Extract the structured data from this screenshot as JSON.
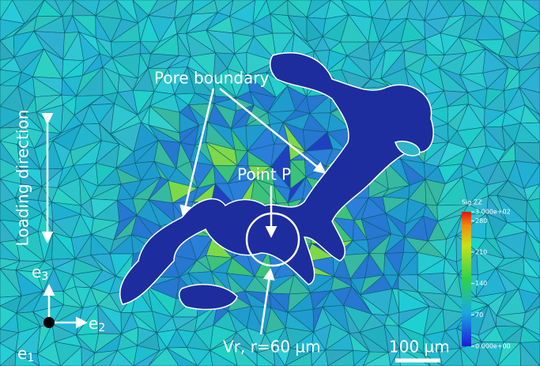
{
  "annotations": {
    "pore_boundary": "Pore boundary",
    "loading_direction": "Loading direction",
    "point": "Point P",
    "volume": "Vr, r=60 µm",
    "scale_bar": "100 µm"
  },
  "axes": [
    {
      "base": "e",
      "sub": "3"
    },
    {
      "base": "e",
      "sub": "1"
    },
    {
      "base": "e",
      "sub": "2"
    }
  ],
  "colorbar": {
    "title": "Sig ZZ",
    "lim": [
      0,
      300
    ],
    "ticks": [
      {
        "value": 300,
        "label": "3.000e+02"
      },
      280,
      210,
      140,
      70,
      {
        "value": 0,
        "label": "0.000e+00"
      }
    ]
  }
}
